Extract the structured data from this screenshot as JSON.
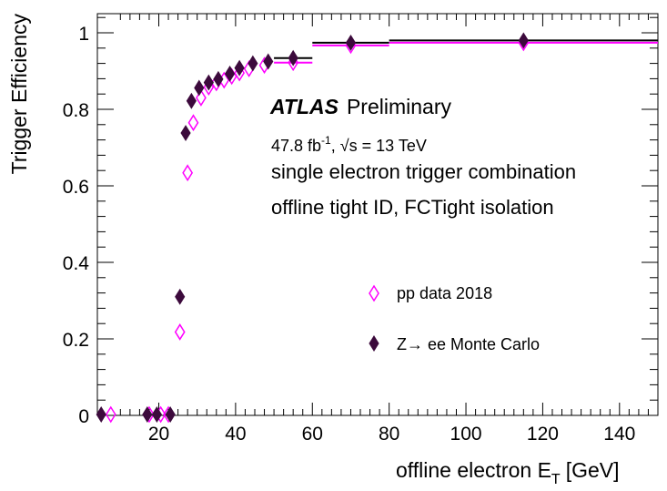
{
  "chart_data": {
    "type": "scatter",
    "xlabel": "offline electron  E",
    "xlabel_sub": "T",
    "xlabel_unit": "[GeV]",
    "ylabel": "Trigger Efficiency",
    "xlim": [
      4,
      150
    ],
    "ylim": [
      0,
      1.05
    ],
    "x_ticks": [
      20,
      40,
      60,
      80,
      100,
      120,
      140
    ],
    "y_ticks": [
      0,
      0.2,
      0.4,
      0.6,
      0.8,
      1
    ],
    "x_tick_labels": [
      "20",
      "40",
      "60",
      "80",
      "100",
      "120",
      "140"
    ],
    "y_tick_labels": [
      "0",
      "0.2",
      "0.4",
      "0.6",
      "0.8",
      "1"
    ],
    "annotations": {
      "atlas": "ATLAS",
      "preliminary": "Preliminary",
      "lumi_value": "47.8 fb",
      "lumi_exp": "-1",
      "sqrt_sym": "√s",
      "energy": " = 13 TeV",
      "line1": "single electron trigger combination",
      "line2": "offline tight ID, FCTight isolation"
    },
    "legend_position": "right-middle",
    "series": [
      {
        "name": "pp data 2018",
        "marker": "open-diamond",
        "color": "#ff00ff",
        "points": [
          {
            "x": 7.5,
            "y": 0.001
          },
          {
            "x": 17.5,
            "y": 0.0
          },
          {
            "x": 20.5,
            "y": 0.001
          },
          {
            "x": 22.5,
            "y": 0.002
          },
          {
            "x": 25.5,
            "y": 0.218
          },
          {
            "x": 27.5,
            "y": 0.634
          },
          {
            "x": 29,
            "y": 0.765
          },
          {
            "x": 31,
            "y": 0.83
          },
          {
            "x": 33,
            "y": 0.858
          },
          {
            "x": 35,
            "y": 0.869
          },
          {
            "x": 37,
            "y": 0.876
          },
          {
            "x": 39,
            "y": 0.886
          },
          {
            "x": 41,
            "y": 0.895
          },
          {
            "x": 43.5,
            "y": 0.906
          },
          {
            "x": 47.5,
            "y": 0.915
          },
          {
            "x": 55,
            "y": 0.922
          },
          {
            "x": 70,
            "y": 0.967
          },
          {
            "x": 115,
            "y": 0.974
          }
        ]
      },
      {
        "name": "Z→ ee Monte Carlo",
        "marker": "filled-diamond",
        "color": "#3c0a3c",
        "points": [
          {
            "x": 5,
            "y": 0.0
          },
          {
            "x": 17,
            "y": 0.0
          },
          {
            "x": 19.5,
            "y": 0.001
          },
          {
            "x": 23,
            "y": 0.0
          },
          {
            "x": 25.5,
            "y": 0.31
          },
          {
            "x": 27,
            "y": 0.738
          },
          {
            "x": 28.5,
            "y": 0.822
          },
          {
            "x": 30.5,
            "y": 0.856
          },
          {
            "x": 33,
            "y": 0.87
          },
          {
            "x": 35.5,
            "y": 0.879
          },
          {
            "x": 38.5,
            "y": 0.893
          },
          {
            "x": 41,
            "y": 0.908
          },
          {
            "x": 44.5,
            "y": 0.92
          },
          {
            "x": 48.5,
            "y": 0.925
          },
          {
            "x": 55,
            "y": 0.934
          },
          {
            "x": 70,
            "y": 0.974
          },
          {
            "x": 115,
            "y": 0.98
          }
        ]
      }
    ],
    "bin_lines": [
      {
        "x0": 50,
        "x1": 60,
        "y": 0.922,
        "color": "#ff00ff"
      },
      {
        "x0": 50,
        "x1": 60,
        "y": 0.934,
        "color": "#000000"
      },
      {
        "x0": 60,
        "x1": 80,
        "y": 0.967,
        "color": "#ff00ff"
      },
      {
        "x0": 60,
        "x1": 80,
        "y": 0.974,
        "color": "#000000"
      },
      {
        "x0": 80,
        "x1": 150,
        "y": 0.974,
        "color": "#ff00ff"
      },
      {
        "x0": 80,
        "x1": 150,
        "y": 0.98,
        "color": "#000000"
      }
    ]
  }
}
